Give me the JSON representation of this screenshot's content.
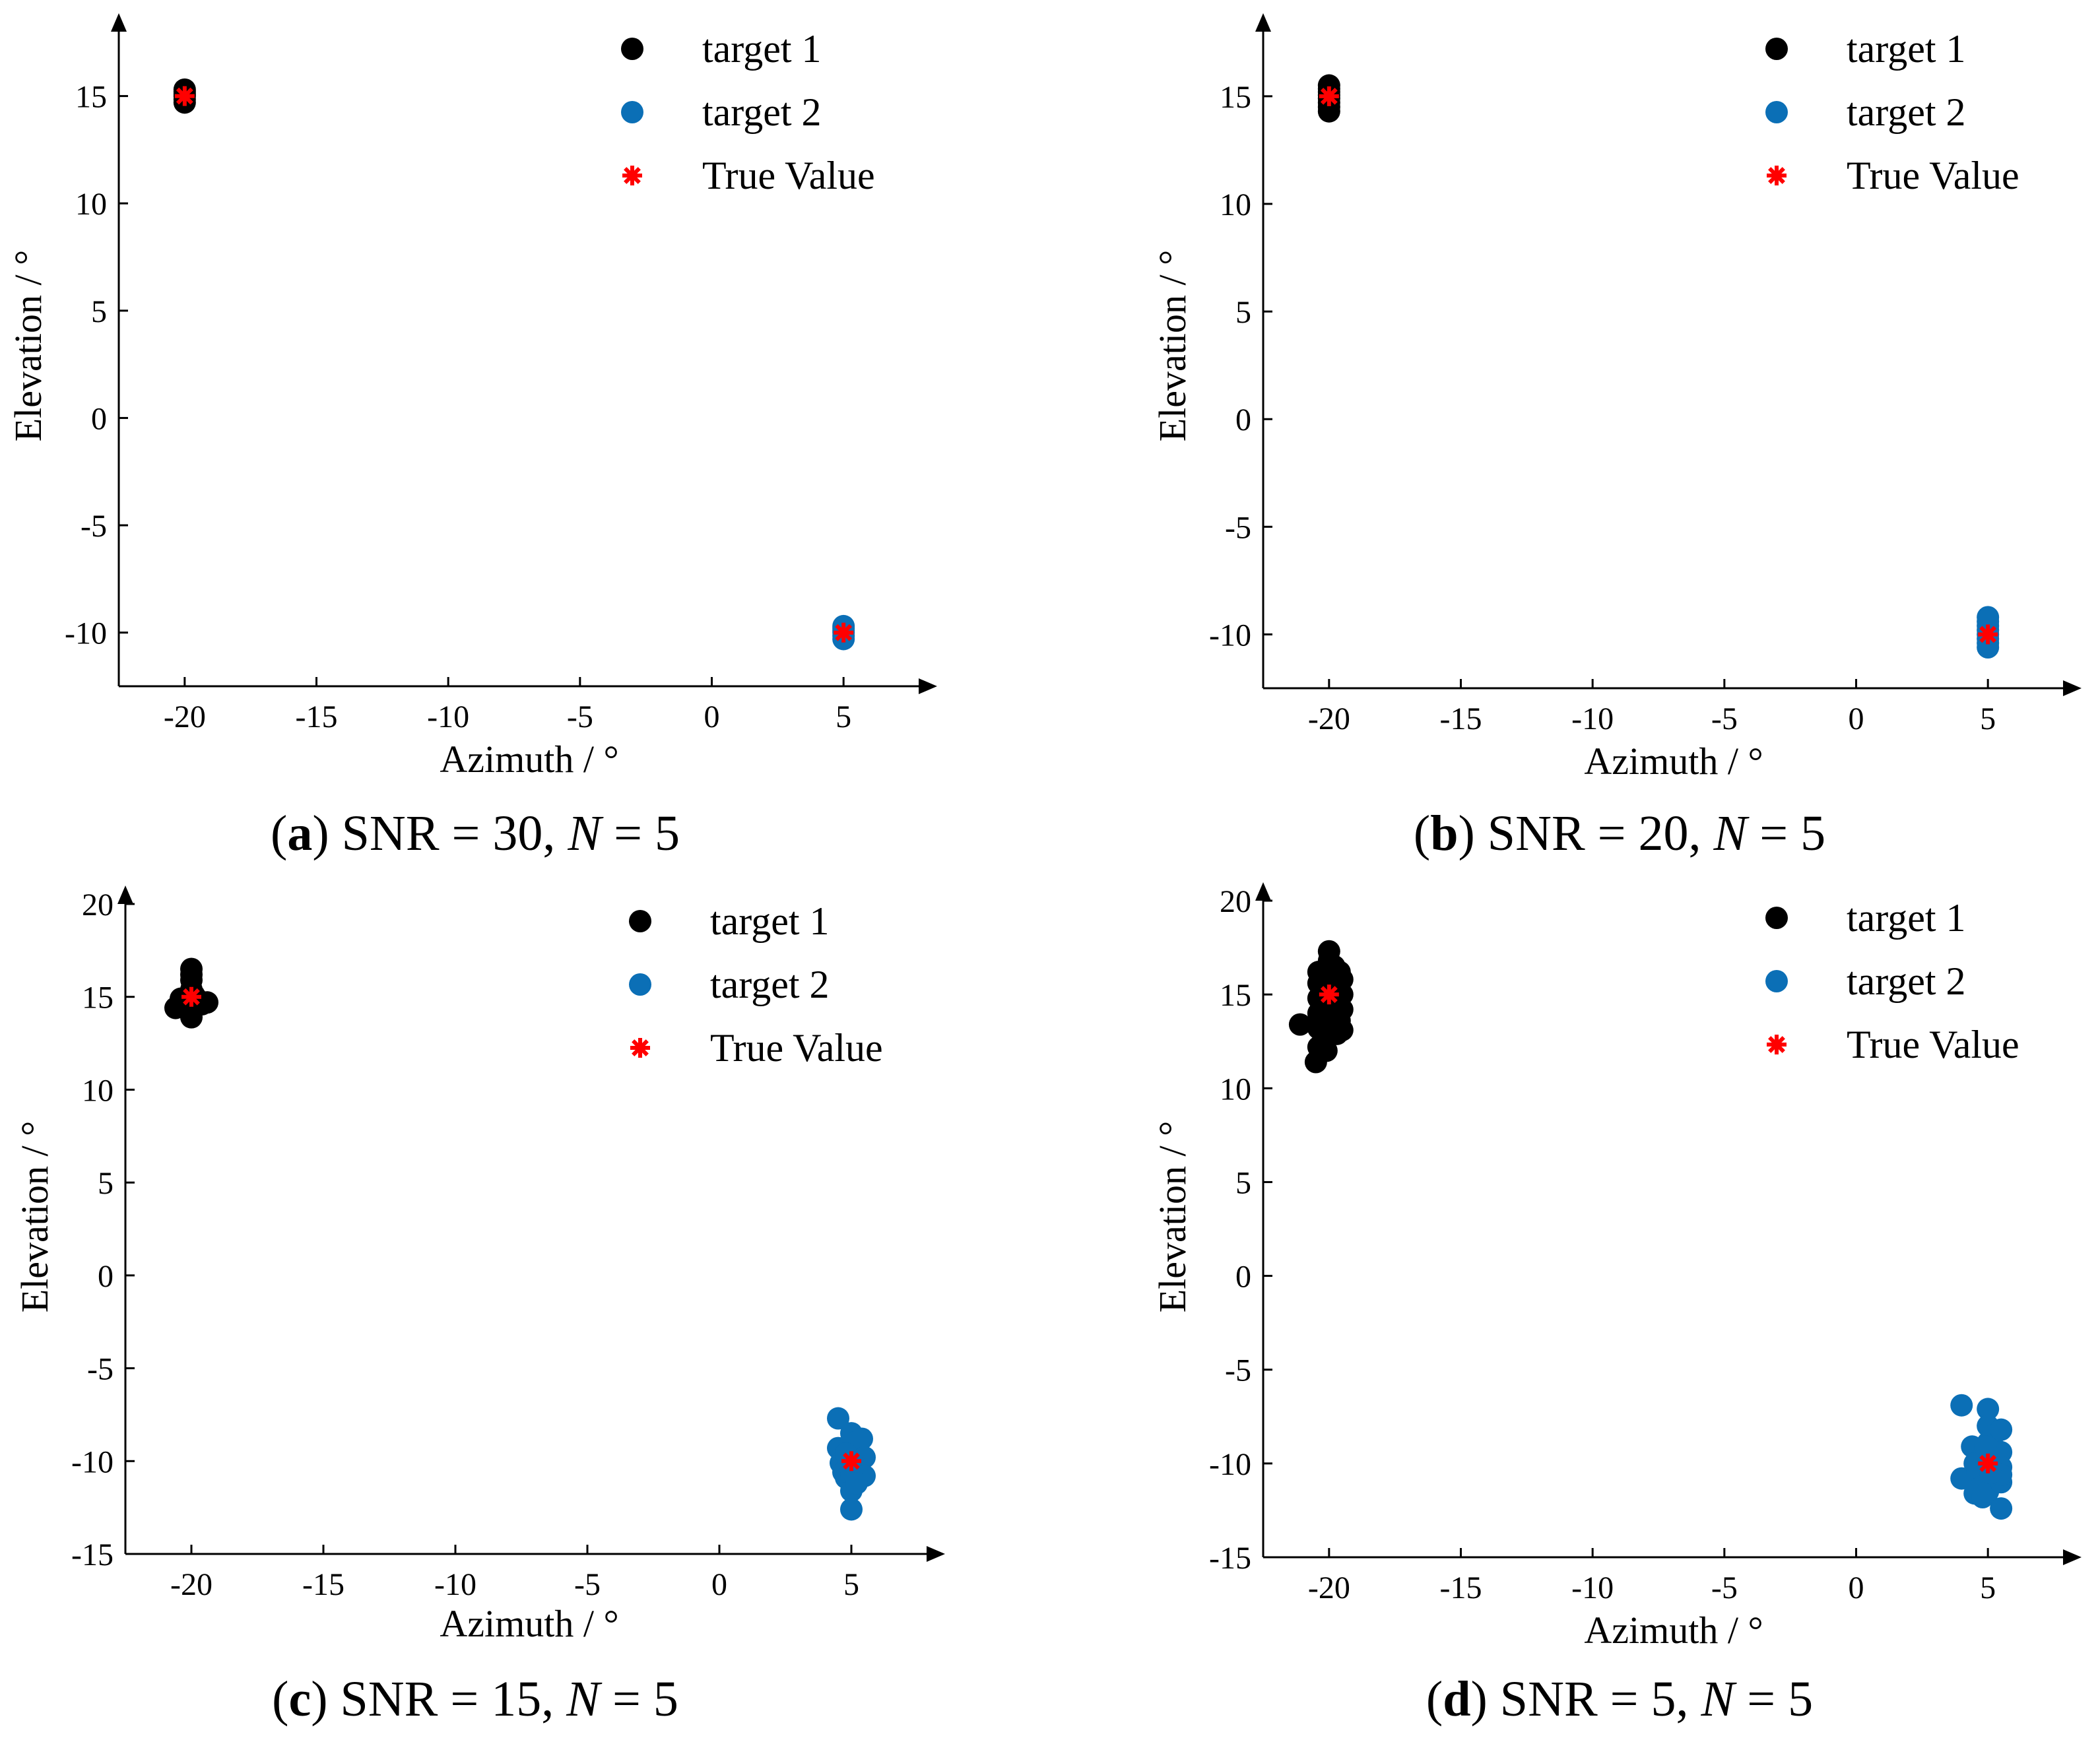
{
  "figure": {
    "panels": [
      {
        "letter": "a",
        "snr": "30",
        "n": "5"
      },
      {
        "letter": "b",
        "snr": "20",
        "n": "5"
      },
      {
        "letter": "c",
        "snr": "15",
        "n": "5"
      },
      {
        "letter": "d",
        "snr": "5",
        "n": "5"
      }
    ]
  },
  "colors": {
    "target1": "#000000",
    "target2": "#0b6fb6",
    "true_value": "#ff0000",
    "axis": "#000000"
  },
  "chart_data": [
    {
      "type": "scatter",
      "panel": "a",
      "title": "SNR = 30, N = 5",
      "xlabel": "Azimuth / °",
      "ylabel": "Elevation / °",
      "xlim": [
        -22.5,
        7.5
      ],
      "ylim": [
        -12.5,
        18
      ],
      "xticks": [
        -20,
        -15,
        -10,
        -5,
        0,
        5
      ],
      "yticks": [
        -10,
        -5,
        0,
        5,
        10,
        15
      ],
      "legend_position": "top-right",
      "series": [
        {
          "name": "target 1",
          "marker": "circle",
          "color": "#000000",
          "x": [
            -20,
            -20,
            -20,
            -20,
            -20,
            -20
          ],
          "y": [
            14.7,
            14.85,
            15.0,
            15.1,
            15.2,
            15.3
          ]
        },
        {
          "name": "target 2",
          "marker": "circle",
          "color": "#0b6fb6",
          "x": [
            5,
            5,
            5,
            5,
            5,
            5
          ],
          "y": [
            -10.3,
            -10.15,
            -10.0,
            -9.9,
            -9.8,
            -9.7
          ]
        },
        {
          "name": "True Value",
          "marker": "asterisk",
          "color": "#ff0000",
          "x": [
            -20,
            5
          ],
          "y": [
            15,
            -10
          ]
        }
      ]
    },
    {
      "type": "scatter",
      "panel": "b",
      "title": "SNR = 20, N = 5",
      "xlabel": "Azimuth / °",
      "ylabel": "Elevation / °",
      "xlim": [
        -22.5,
        7.5
      ],
      "ylim": [
        -12.5,
        18
      ],
      "xticks": [
        -20,
        -15,
        -10,
        -5,
        0,
        5
      ],
      "yticks": [
        -10,
        -5,
        0,
        5,
        10,
        15
      ],
      "legend_position": "top-right",
      "series": [
        {
          "name": "target 1",
          "marker": "circle",
          "color": "#000000",
          "x": [
            -20,
            -20,
            -20,
            -20,
            -20,
            -20,
            -20,
            -20
          ],
          "y": [
            14.3,
            14.5,
            14.7,
            14.9,
            15.05,
            15.2,
            15.35,
            15.5
          ]
        },
        {
          "name": "target 2",
          "marker": "circle",
          "color": "#0b6fb6",
          "x": [
            5,
            5,
            5,
            5,
            5,
            5,
            5,
            5
          ],
          "y": [
            -10.6,
            -10.4,
            -10.2,
            -10.0,
            -9.8,
            -9.6,
            -9.4,
            -9.2
          ]
        },
        {
          "name": "True Value",
          "marker": "asterisk",
          "color": "#ff0000",
          "x": [
            -20,
            5
          ],
          "y": [
            15,
            -10
          ]
        }
      ]
    },
    {
      "type": "scatter",
      "panel": "c",
      "title": "SNR = 15, N = 5",
      "xlabel": "Azimuth / °",
      "ylabel": "Elevation / °",
      "xlim": [
        -22.5,
        7.5
      ],
      "ylim": [
        -15,
        20
      ],
      "xticks": [
        -20,
        -15,
        -10,
        -5,
        0,
        5
      ],
      "yticks": [
        -15,
        -10,
        -5,
        0,
        5,
        10,
        15,
        20
      ],
      "legend_position": "top-right",
      "series": [
        {
          "name": "target 1",
          "marker": "circle",
          "color": "#000000",
          "x": [
            -20.6,
            -20.4,
            -20.2,
            -20.0,
            -20.0,
            -20.0,
            -20.0,
            -20.0,
            -20.0,
            -19.8,
            -19.6,
            -19.4,
            -20.0,
            -19.9,
            -20.1
          ],
          "y": [
            14.4,
            14.9,
            14.6,
            13.9,
            14.3,
            14.8,
            15.4,
            15.9,
            16.5,
            14.9,
            14.6,
            14.7,
            16.2,
            15.1,
            14.5
          ]
        },
        {
          "name": "target 2",
          "marker": "circle",
          "color": "#0b6fb6",
          "x": [
            4.5,
            4.5,
            4.6,
            4.7,
            4.8,
            5.0,
            5.0,
            5.0,
            5.0,
            5.0,
            5.0,
            5.1,
            5.3,
            5.4,
            5.5,
            5.5,
            5.2,
            4.8
          ],
          "y": [
            -7.7,
            -9.3,
            -10.1,
            -10.6,
            -10.9,
            -8.5,
            -9.4,
            -10.0,
            -10.7,
            -11.6,
            -12.6,
            -9.0,
            -9.6,
            -8.8,
            -9.8,
            -10.8,
            -11.2,
            -9.6
          ]
        },
        {
          "name": "True Value",
          "marker": "asterisk",
          "color": "#ff0000",
          "x": [
            -20,
            5
          ],
          "y": [
            15,
            -10
          ]
        }
      ]
    },
    {
      "type": "scatter",
      "panel": "d",
      "title": "SNR = 5, N = 5",
      "xlabel": "Azimuth / °",
      "ylabel": "Elevation / °",
      "xlim": [
        -22.5,
        7.5
      ],
      "ylim": [
        -15,
        20
      ],
      "xticks": [
        -20,
        -15,
        -10,
        -5,
        0,
        5
      ],
      "yticks": [
        -15,
        -10,
        -5,
        0,
        5,
        10,
        15,
        20
      ],
      "legend_position": "top-right",
      "series": [
        {
          "name": "target 1",
          "marker": "circle",
          "color": "#000000",
          "x": [
            -21.1,
            -20.5,
            -20.4,
            -20.4,
            -20.4,
            -20.4,
            -20.4,
            -20.4,
            -20.1,
            -20.0,
            -20.0,
            -20.0,
            -20.0,
            -20.0,
            -20.0,
            -20.0,
            -20.0,
            -20.0,
            -19.7,
            -19.7,
            -19.6,
            -19.6,
            -19.5,
            -19.5,
            -19.5,
            -19.5,
            -19.8,
            -20.2
          ],
          "y": [
            13.4,
            11.4,
            12.2,
            13.2,
            14.0,
            14.8,
            15.6,
            16.2,
            12.0,
            13.0,
            13.6,
            14.3,
            15.0,
            15.7,
            16.3,
            16.8,
            17.3,
            14.6,
            12.9,
            15.2,
            13.6,
            16.2,
            13.1,
            14.2,
            15.0,
            15.8,
            16.5,
            16.0
          ]
        },
        {
          "name": "target 2",
          "marker": "circle",
          "color": "#0b6fb6",
          "x": [
            4.0,
            4.0,
            4.4,
            4.5,
            4.5,
            4.6,
            4.7,
            4.8,
            5.0,
            5.0,
            5.0,
            5.0,
            5.0,
            5.0,
            5.0,
            5.2,
            5.3,
            5.5,
            5.5,
            5.5,
            5.5,
            5.5,
            5.5,
            4.9,
            5.1
          ],
          "y": [
            -6.9,
            -10.8,
            -9.1,
            -10.0,
            -11.6,
            -10.4,
            -11.3,
            -11.8,
            -7.1,
            -8.0,
            -8.9,
            -9.5,
            -10.2,
            -10.9,
            -11.5,
            -8.5,
            -9.8,
            -8.2,
            -9.4,
            -10.2,
            -11.0,
            -12.4,
            -10.6,
            -9.1,
            -10.5
          ]
        },
        {
          "name": "True Value",
          "marker": "asterisk",
          "color": "#ff0000",
          "x": [
            -20,
            5
          ],
          "y": [
            15,
            -10
          ]
        }
      ]
    }
  ]
}
